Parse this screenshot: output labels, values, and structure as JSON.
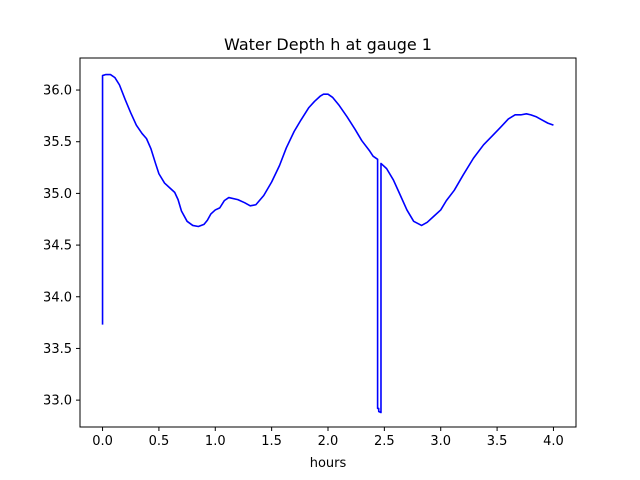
{
  "chart_data": {
    "type": "line",
    "title": "Water Depth h at gauge 1",
    "xlabel": "hours",
    "ylabel": "",
    "xlim": [
      -0.2,
      4.2
    ],
    "ylim": [
      32.74,
      36.31
    ],
    "grid": false,
    "xticks": [
      0.0,
      0.5,
      1.0,
      1.5,
      2.0,
      2.5,
      3.0,
      3.5,
      4.0
    ],
    "xtick_labels": [
      "0.0",
      "0.5",
      "1.0",
      "1.5",
      "2.0",
      "2.5",
      "3.0",
      "3.5",
      "4.0"
    ],
    "yticks": [
      33.0,
      33.5,
      34.0,
      34.5,
      35.0,
      35.5,
      36.0
    ],
    "ytick_labels": [
      "33.0",
      "33.5",
      "34.0",
      "34.5",
      "35.0",
      "35.5",
      "36.0"
    ],
    "colors": {
      "line": "#0000ff",
      "axes": "#000000",
      "background": "#ffffff"
    },
    "series": [
      {
        "x": [
          0.0,
          0.0,
          0.03,
          0.07,
          0.11,
          0.15,
          0.2,
          0.25,
          0.3,
          0.35,
          0.39,
          0.43,
          0.47,
          0.5,
          0.55,
          0.6,
          0.64,
          0.67,
          0.7,
          0.75,
          0.8,
          0.85,
          0.9,
          0.93,
          0.96,
          1.0,
          1.04,
          1.08,
          1.12,
          1.2,
          1.26,
          1.31,
          1.36,
          1.43,
          1.5,
          1.57,
          1.63,
          1.7,
          1.76,
          1.83,
          1.88,
          1.93,
          1.96,
          2.0,
          2.04,
          2.1,
          2.17,
          2.24,
          2.3,
          2.37,
          2.4,
          2.44,
          2.44,
          2.45,
          2.45,
          2.47,
          2.47,
          2.52,
          2.58,
          2.63,
          2.7,
          2.76,
          2.83,
          2.88,
          2.94,
          3.0,
          3.05,
          3.12,
          3.2,
          3.29,
          3.38,
          3.46,
          3.54,
          3.6,
          3.66,
          3.71,
          3.76,
          3.8,
          3.85,
          3.9,
          3.95,
          4.0
        ],
        "y": [
          33.73,
          36.14,
          36.15,
          36.15,
          36.12,
          36.05,
          35.91,
          35.78,
          35.66,
          35.58,
          35.53,
          35.43,
          35.29,
          35.19,
          35.1,
          35.05,
          35.01,
          34.94,
          34.83,
          34.73,
          34.69,
          34.68,
          34.7,
          34.74,
          34.8,
          34.84,
          34.86,
          34.93,
          34.96,
          34.94,
          34.91,
          34.88,
          34.89,
          34.98,
          35.11,
          35.27,
          35.44,
          35.6,
          35.71,
          35.83,
          35.89,
          35.94,
          35.96,
          35.96,
          35.93,
          35.85,
          35.74,
          35.62,
          35.51,
          35.41,
          35.36,
          35.33,
          32.92,
          32.92,
          32.89,
          32.88,
          35.29,
          35.24,
          35.13,
          35.01,
          34.84,
          34.73,
          34.69,
          34.72,
          34.78,
          34.84,
          34.93,
          35.03,
          35.18,
          35.34,
          35.47,
          35.56,
          35.65,
          35.72,
          35.76,
          35.76,
          35.77,
          35.76,
          35.74,
          35.71,
          35.68,
          35.66
        ]
      }
    ]
  }
}
